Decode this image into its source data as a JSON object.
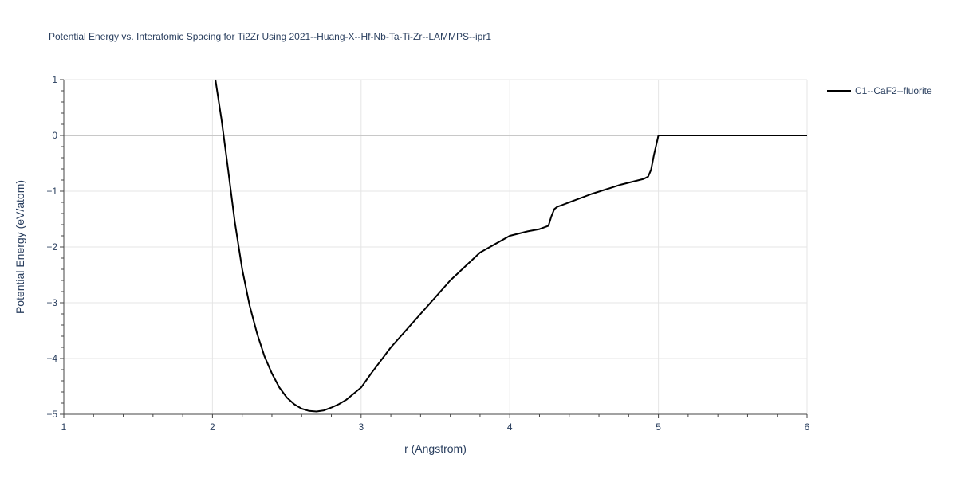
{
  "chart_data": {
    "type": "line",
    "title": "Potential Energy vs. Interatomic Spacing for Ti2Zr Using 2021--Huang-X--Hf-Nb-Ta-Ti-Zr--LAMMPS--ipr1",
    "xlabel": "r (Angstrom)",
    "ylabel": "Potential Energy (eV/atom)",
    "xlim": [
      1,
      6
    ],
    "ylim": [
      -5,
      1
    ],
    "x_ticks": [
      1,
      2,
      3,
      4,
      5,
      6
    ],
    "x_tick_labels": [
      "1",
      "2",
      "3",
      "4",
      "5",
      "6"
    ],
    "y_ticks": [
      1,
      0,
      -1,
      -2,
      -3,
      -4,
      -5
    ],
    "y_tick_labels": [
      "1",
      "0",
      "−1",
      "−2",
      "−3",
      "−4",
      "−5"
    ],
    "grid": true,
    "legend_position": "top-right outside",
    "series": [
      {
        "name": "C1--CaF2--fluorite",
        "color": "#000000",
        "x": [
          2.02,
          2.06,
          2.1,
          2.15,
          2.2,
          2.25,
          2.3,
          2.35,
          2.4,
          2.45,
          2.5,
          2.55,
          2.6,
          2.65,
          2.7,
          2.75,
          2.8,
          2.85,
          2.9,
          2.95,
          3.0,
          3.07,
          3.2,
          3.4,
          3.6,
          3.8,
          4.0,
          4.12,
          4.2,
          4.26,
          4.28,
          4.3,
          4.32,
          4.35,
          4.42,
          4.55,
          4.75,
          4.9,
          4.93,
          4.95,
          4.97,
          5.0,
          5.5,
          6.0
        ],
        "y": [
          1.0,
          0.3,
          -0.5,
          -1.55,
          -2.4,
          -3.05,
          -3.55,
          -3.96,
          -4.27,
          -4.52,
          -4.7,
          -4.82,
          -4.9,
          -4.94,
          -4.95,
          -4.93,
          -4.88,
          -4.82,
          -4.74,
          -4.63,
          -4.52,
          -4.26,
          -3.8,
          -3.2,
          -2.6,
          -2.1,
          -1.8,
          -1.72,
          -1.68,
          -1.62,
          -1.45,
          -1.32,
          -1.28,
          -1.25,
          -1.18,
          -1.05,
          -0.88,
          -0.78,
          -0.74,
          -0.62,
          -0.35,
          0.0,
          0.0,
          0.0
        ]
      }
    ]
  }
}
